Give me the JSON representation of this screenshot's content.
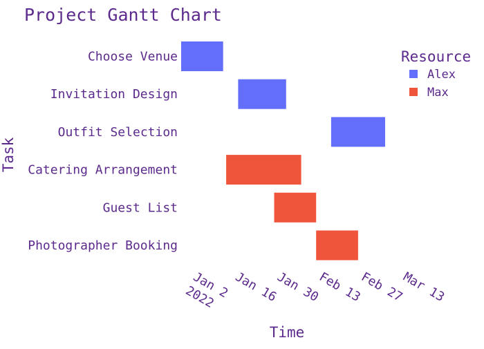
{
  "chart_data": {
    "type": "gantt",
    "title": "Project Gantt Chart",
    "xlabel": "Time",
    "ylabel": "Task",
    "legend_title": "Resource",
    "legend_position": "top-right",
    "grid": false,
    "text_color": "#5b2a8c",
    "x_range": [
      "2022-01-01",
      "2022-03-13"
    ],
    "x_ticks": [
      {
        "date": "2022-01-02",
        "label": "Jan 2",
        "sublabel": "2022"
      },
      {
        "date": "2022-01-16",
        "label": "Jan 16"
      },
      {
        "date": "2022-01-30",
        "label": "Jan 30"
      },
      {
        "date": "2022-02-13",
        "label": "Feb 13"
      },
      {
        "date": "2022-02-27",
        "label": "Feb 27"
      },
      {
        "date": "2022-03-13",
        "label": "Mar 13"
      }
    ],
    "resources": [
      {
        "name": "Alex",
        "color": "#636efa"
      },
      {
        "name": "Max",
        "color": "#ef553b"
      }
    ],
    "tasks": [
      {
        "task": "Choose Venue",
        "start": "2022-01-01",
        "end": "2022-01-15",
        "resource": "Alex"
      },
      {
        "task": "Invitation Design",
        "start": "2022-01-20",
        "end": "2022-02-05",
        "resource": "Alex"
      },
      {
        "task": "Outfit Selection",
        "start": "2022-02-20",
        "end": "2022-03-10",
        "resource": "Alex"
      },
      {
        "task": "Catering Arrangement",
        "start": "2022-01-16",
        "end": "2022-02-10",
        "resource": "Max"
      },
      {
        "task": "Guest List",
        "start": "2022-02-01",
        "end": "2022-02-15",
        "resource": "Max"
      },
      {
        "task": "Photographer Booking",
        "start": "2022-02-15",
        "end": "2022-03-01",
        "resource": "Max"
      }
    ]
  }
}
